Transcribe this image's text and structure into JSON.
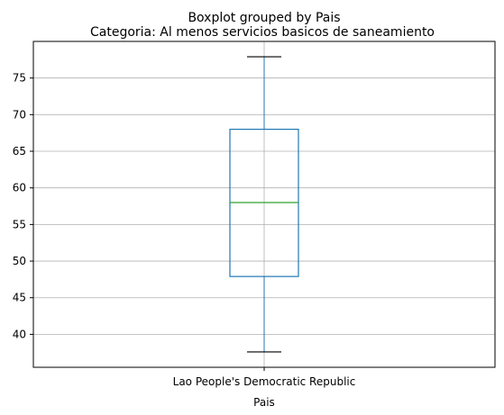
{
  "chart_data": {
    "type": "boxplot",
    "suptitle": "Boxplot grouped by Pais",
    "title": "Categoria: Al menos servicios basicos de saneamiento",
    "xlabel": "Pais",
    "ylabel": "",
    "categories": [
      "Lao People's Democratic Republic"
    ],
    "boxes": [
      {
        "category": "Lao People's Democratic Republic",
        "whisker_low": 37.6,
        "q1": 47.9,
        "median": 58.0,
        "q3": 68.0,
        "whisker_high": 77.9
      }
    ],
    "ylim": [
      35.5,
      80.0
    ],
    "yticks": [
      40,
      45,
      50,
      55,
      60,
      65,
      70,
      75
    ],
    "grid": true,
    "colors": {
      "box": "#1f77b4",
      "median": "#2ca02c",
      "whisker_cap": "#000000",
      "grid": "#b0b0b0"
    }
  }
}
